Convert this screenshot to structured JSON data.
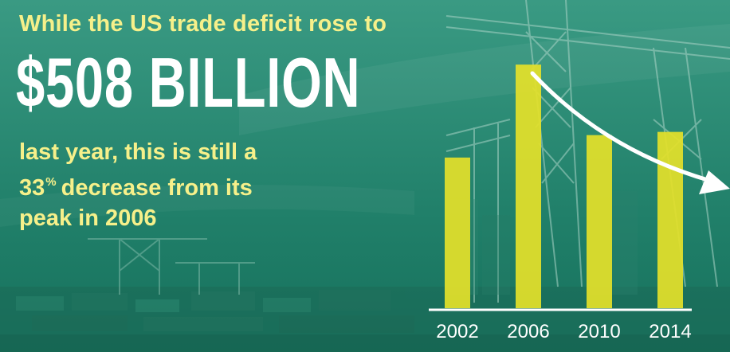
{
  "headline": {
    "top_line": "While the US trade deficit rose to",
    "amount": "$508 BILLION",
    "line_1": "last year, this is still a",
    "line_2_number": "33",
    "line_2_symbol": "%",
    "line_2_rest": "decrease from its",
    "line_3": "peak in 2006"
  },
  "colors": {
    "bar": "#e3e02a",
    "headline_text": "#f6f08a",
    "background": "#1f7e68"
  },
  "chart_data": {
    "type": "bar",
    "title": "",
    "xlabel": "",
    "ylabel": "",
    "categories": [
      "2002",
      "2006",
      "2010",
      "2014"
    ],
    "values": [
      470,
      760,
      540,
      550
    ],
    "ylim": [
      0,
      800
    ],
    "grid": false,
    "legend": "none",
    "annotation": "white curved arrow descending from the 2006 peak toward the right"
  }
}
